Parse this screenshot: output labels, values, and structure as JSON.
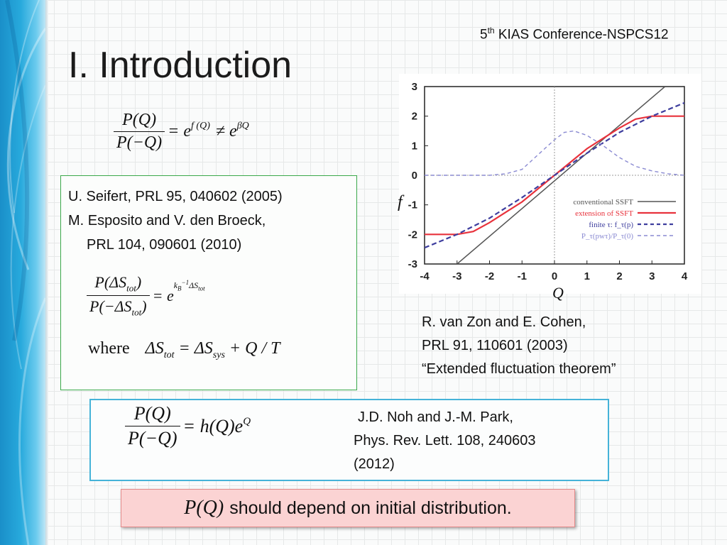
{
  "header": {
    "conference_prefix": "5",
    "conference_sup": "th",
    "conference_rest": " KIAS Conference-NSPCS12",
    "title": "I. Introduction"
  },
  "eq1": {
    "num": "P(Q)",
    "den": "P(−Q)",
    "rel1": "= e",
    "exp1": "f (Q)",
    "rel2": "≠ e",
    "exp2": "βQ"
  },
  "references_top": {
    "line1": "U. Seifert, PRL 95, 040602 (2005)",
    "line2": "M. Esposito and V. den Broeck,",
    "line3": "PRL 104, 090601 (2010)"
  },
  "eq2": {
    "num_pre": "P(ΔS",
    "num_sub": "tot",
    "num_post": ")",
    "den_pre": "P(−ΔS",
    "den_sub": "tot",
    "den_post": ")",
    "rhs": "= e",
    "exp_a": "k",
    "exp_b": "B",
    "exp_c": "−1",
    "exp_d": "ΔS",
    "exp_e": "tot"
  },
  "eq3": {
    "where": "where",
    "a": "ΔS",
    "a_sub": "tot",
    "b": " = ΔS",
    "b_sub": "sys",
    "c": " + Q / T"
  },
  "figure": {
    "y_axis_symbol": "f",
    "x_axis_symbol": "Q",
    "colors": {
      "conventional": "#555555",
      "extension": "#e8323c",
      "finite": "#3e3e9e",
      "ratio": "#8a8ad2"
    }
  },
  "chart_data": {
    "type": "line",
    "xlim": [
      -4,
      4
    ],
    "ylim": [
      -3,
      3
    ],
    "xticks": [
      -4,
      -3,
      -2,
      -1,
      0,
      1,
      2,
      3,
      4
    ],
    "yticks": [
      3,
      2,
      1,
      0,
      -1,
      -2,
      -3
    ],
    "grid": false,
    "legend_position": "bottom-right",
    "series": [
      {
        "name": "conventional SSFT",
        "style": "solid",
        "color": "#555555",
        "x": [
          -3,
          3.4
        ],
        "y": [
          -3,
          3
        ]
      },
      {
        "name": "extension of SSFT",
        "style": "solid",
        "color": "#e8323c",
        "x": [
          -4,
          -3.5,
          -3,
          -2.5,
          -2,
          -1.5,
          -1,
          0,
          1,
          1.5,
          2,
          2.5,
          3,
          3.5,
          4
        ],
        "y": [
          -2,
          -2,
          -2,
          -1.9,
          -1.6,
          -1.25,
          -0.9,
          0,
          0.9,
          1.25,
          1.6,
          1.9,
          2,
          2,
          2
        ]
      },
      {
        "name": "finite τ: f_τ(p)",
        "style": "dashed",
        "color": "#3e3e9e",
        "x": [
          -4,
          -3,
          -2,
          -1,
          0,
          1,
          2,
          3,
          4
        ],
        "y": [
          -2.45,
          -2.0,
          -1.45,
          -0.75,
          0,
          0.75,
          1.45,
          2.0,
          2.45
        ]
      },
      {
        "name": "P_τ(pwτ)/P_τ(0)",
        "style": "dashed",
        "color": "#8a8ad2",
        "x": [
          -4,
          -2,
          -1.5,
          -1,
          -0.5,
          0,
          0.3,
          0.6,
          1,
          1.5,
          2,
          2.5,
          3,
          3.5,
          4
        ],
        "y": [
          0,
          0,
          0.05,
          0.2,
          0.7,
          1.2,
          1.45,
          1.5,
          1.35,
          1.0,
          0.6,
          0.3,
          0.15,
          0.05,
          0
        ]
      }
    ]
  },
  "references_right": {
    "line1": "R. van Zon and E. Cohen,",
    "line2": "PRL 91, 110601 (2003)",
    "line3": "“Extended fluctuation theorem”"
  },
  "eq4": {
    "num": "P(Q)",
    "den": "P(−Q)",
    "rhs": "= h(Q)e",
    "exp": "Q"
  },
  "references_bottom": {
    "line1": "J.D. Noh and J.-M. Park,",
    "line2": "Phys. Rev. Lett. 108, 240603",
    "line3": "(2012)"
  },
  "callout": {
    "math": "P(Q)",
    "text": "should depend on initial distribution."
  }
}
